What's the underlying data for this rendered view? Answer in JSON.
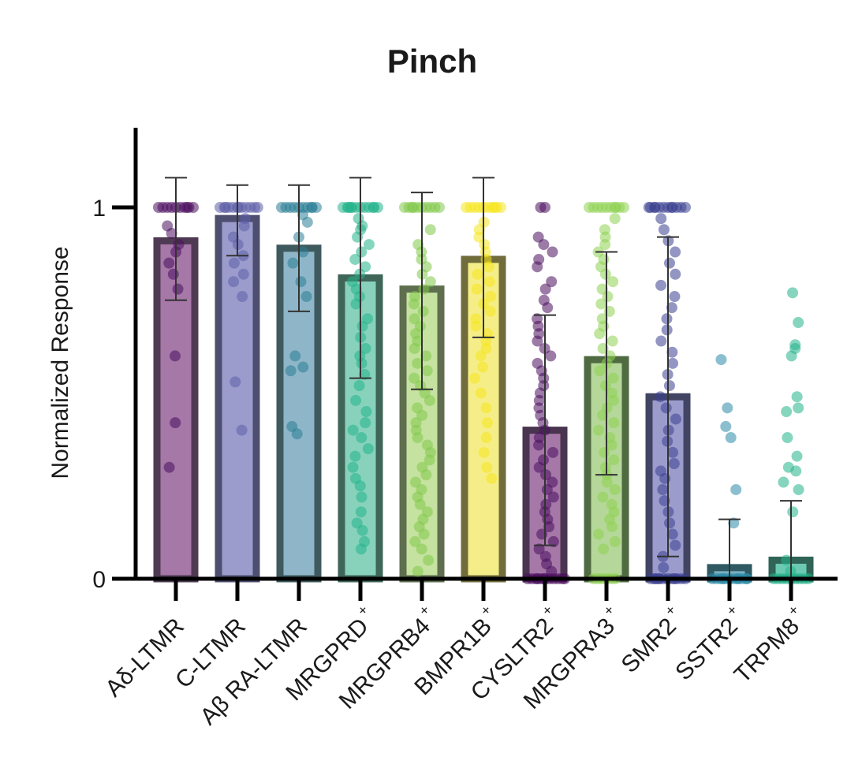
{
  "chart_data": {
    "type": "bar",
    "title": "Pinch",
    "ylabel": "Normalized Response",
    "xlabel": "",
    "ylim": [
      0,
      1.2
    ],
    "yticks": [
      {
        "value": 0,
        "label": "0"
      },
      {
        "value": 1,
        "label": "1"
      }
    ],
    "grid": false,
    "legend": "none",
    "categories": [
      "Aδ-LTMR",
      "C-LTMR",
      "Aβ RA-LTMR",
      "MRGPRD",
      "MRGPRB4",
      "BMPR1B",
      "CYSLTR2",
      "MRGPRA3",
      "SMR2",
      "SSTR2",
      "TRPM8"
    ],
    "category_superscripts": [
      "",
      "",
      "",
      "+",
      "+",
      "+",
      "+",
      "+",
      "+",
      "+",
      "+"
    ],
    "values": [
      0.91,
      0.97,
      0.89,
      0.81,
      0.78,
      0.86,
      0.4,
      0.59,
      0.49,
      0.03,
      0.05
    ],
    "error_upper": [
      1.08,
      1.06,
      1.06,
      1.08,
      1.04,
      1.08,
      0.71,
      0.88,
      0.92,
      0.16,
      0.21
    ],
    "error_lower": [
      0.75,
      0.87,
      0.72,
      0.54,
      0.51,
      0.65,
      0.09,
      0.28,
      0.06,
      0.0,
      0.0
    ],
    "colors": {
      "fill": [
        "#a578a8",
        "#9b9ccc",
        "#8fb6c8",
        "#88d2bc",
        "#c5e2a0",
        "#f5ee88",
        "#a578a8",
        "#b5d89a",
        "#9b9ccc",
        "#7ab0c0",
        "#6ccab2"
      ],
      "outline": [
        "#4e3a52",
        "#4e4e70",
        "#3f5a5e",
        "#3f6658",
        "#5e6e4e",
        "#716c3c",
        "#4a3550",
        "#506a42",
        "#424463",
        "#2f5a64",
        "#2f6456"
      ],
      "points": [
        "#4b0f5e",
        "#5d5fa8",
        "#2a7e96",
        "#22b38a",
        "#82c94a",
        "#f5e61e",
        "#4b0f5e",
        "#8ed150",
        "#3b3f90",
        "#2c8aa8",
        "#22b38a"
      ],
      "axis": "#000000"
    },
    "points": [
      [
        1,
        1,
        1,
        1,
        1,
        1,
        1,
        1,
        1,
        1,
        0.95,
        0.93,
        0.9,
        0.88,
        0.85,
        0.82,
        0.78,
        0.6,
        0.42,
        0.3
      ],
      [
        1,
        1,
        1,
        1,
        1,
        1,
        1,
        1,
        1,
        1,
        1,
        1,
        0.97,
        0.95,
        0.92,
        0.9,
        0.87,
        0.85,
        0.82,
        0.8,
        0.76,
        0.53,
        0.4
      ],
      [
        1,
        1,
        1,
        1,
        1,
        1,
        1,
        1,
        1,
        1,
        0.98,
        0.96,
        0.92,
        0.88,
        0.85,
        0.8,
        0.76,
        0.6,
        0.57,
        0.56,
        0.41,
        0.39
      ],
      [
        1,
        1,
        1,
        1,
        1,
        1,
        1,
        1,
        1,
        1,
        1,
        1,
        0.97,
        0.95,
        0.94,
        0.92,
        0.9,
        0.88,
        0.86,
        0.84,
        0.82,
        0.8,
        0.78,
        0.76,
        0.74,
        0.7,
        0.68,
        0.65,
        0.62,
        0.6,
        0.58,
        0.55,
        0.52,
        0.48,
        0.45,
        0.42,
        0.4,
        0.38,
        0.35,
        0.33,
        0.3,
        0.27,
        0.25,
        0.22,
        0.18,
        0.15,
        0.13,
        0.1,
        0.08
      ],
      [
        1,
        1,
        1,
        1,
        1,
        1,
        1,
        1,
        1,
        1,
        0.94,
        0.9,
        0.88,
        0.86,
        0.84,
        0.82,
        0.8,
        0.78,
        0.76,
        0.74,
        0.72,
        0.7,
        0.68,
        0.66,
        0.64,
        0.62,
        0.6,
        0.58,
        0.56,
        0.54,
        0.52,
        0.5,
        0.48,
        0.46,
        0.44,
        0.42,
        0.4,
        0.38,
        0.36,
        0.34,
        0.32,
        0.3,
        0.28,
        0.26,
        0.24,
        0.22,
        0.2,
        0.18,
        0.16,
        0.14,
        0.12,
        0.1,
        0.08,
        0.05,
        0.02
      ],
      [
        1,
        1,
        1,
        1,
        1,
        1,
        1,
        1,
        1,
        1,
        0.96,
        0.94,
        0.92,
        0.9,
        0.88,
        0.86,
        0.84,
        0.82,
        0.8,
        0.78,
        0.76,
        0.74,
        0.72,
        0.7,
        0.68,
        0.66,
        0.64,
        0.62,
        0.6,
        0.57,
        0.54,
        0.5,
        0.46,
        0.42,
        0.38,
        0.34,
        0.3,
        0.27
      ],
      [
        1,
        1,
        0.92,
        0.9,
        0.88,
        0.86,
        0.84,
        0.8,
        0.78,
        0.75,
        0.73,
        0.7,
        0.68,
        0.66,
        0.64,
        0.62,
        0.6,
        0.58,
        0.56,
        0.54,
        0.52,
        0.5,
        0.48,
        0.46,
        0.44,
        0.42,
        0.4,
        0.38,
        0.36,
        0.34,
        0.32,
        0.3,
        0.28,
        0.26,
        0.24,
        0.22,
        0.2,
        0.18,
        0.16,
        0.14,
        0.12,
        0.1,
        0.08,
        0.06,
        0.04,
        0.02,
        0,
        0,
        0,
        0,
        0,
        0,
        0,
        0,
        0,
        0,
        0,
        0
      ],
      [
        1,
        1,
        1,
        1,
        1,
        1,
        1,
        1,
        1,
        1,
        0.97,
        0.94,
        0.92,
        0.9,
        0.88,
        0.86,
        0.84,
        0.82,
        0.8,
        0.78,
        0.76,
        0.74,
        0.72,
        0.7,
        0.68,
        0.66,
        0.64,
        0.62,
        0.6,
        0.58,
        0.56,
        0.54,
        0.52,
        0.5,
        0.48,
        0.46,
        0.44,
        0.42,
        0.4,
        0.38,
        0.36,
        0.34,
        0.32,
        0.3,
        0.28,
        0.26,
        0.24,
        0.22,
        0.2,
        0.18,
        0.16,
        0.14,
        0.12,
        0.1,
        0.08,
        0,
        0,
        0,
        0,
        0,
        0
      ],
      [
        1,
        1,
        1,
        1,
        1,
        1,
        1,
        1,
        1,
        1,
        1,
        1,
        0.97,
        0.94,
        0.91,
        0.88,
        0.85,
        0.82,
        0.79,
        0.76,
        0.73,
        0.7,
        0.67,
        0.64,
        0.61,
        0.58,
        0.55,
        0.52,
        0.49,
        0.46,
        0.43,
        0.4,
        0.37,
        0.34,
        0.31,
        0.29,
        0.27,
        0.24,
        0.21,
        0.18,
        0.15,
        0.12,
        0.09,
        0.06,
        0.03,
        0,
        0,
        0,
        0,
        0,
        0,
        0,
        0,
        0,
        0,
        0,
        0
      ],
      [
        0.59,
        0.46,
        0.41,
        0.38,
        0.24,
        0.15,
        0,
        0,
        0,
        0,
        0,
        0,
        0,
        0,
        0,
        0,
        0,
        0
      ],
      [
        0.77,
        0.69,
        0.63,
        0.62,
        0.6,
        0.49,
        0.46,
        0.45,
        0.38,
        0.33,
        0.3,
        0.29,
        0.26,
        0.24,
        0.18,
        0.05,
        0.02,
        0,
        0,
        0,
        0,
        0,
        0,
        0,
        0,
        0
      ]
    ]
  }
}
